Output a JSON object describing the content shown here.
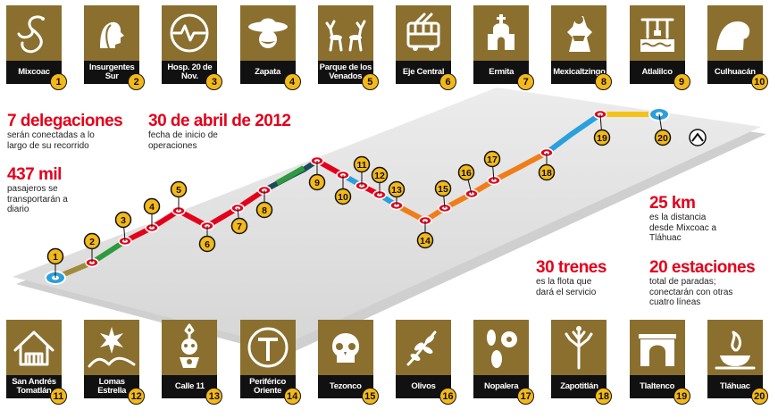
{
  "top_stations": [
    {
      "num": "1",
      "label": "Mixcoac",
      "icon": "serpent-icon"
    },
    {
      "num": "2",
      "label": "Insurgentes Sur",
      "icon": "heads-profile-icon"
    },
    {
      "num": "3",
      "label": "Hosp. 20 de Nov.",
      "icon": "heartbeat-circle-icon"
    },
    {
      "num": "4",
      "label": "Zapata",
      "icon": "sombrero-face-icon"
    },
    {
      "num": "5",
      "label": "Parque de los Venados",
      "icon": "deer-icon"
    },
    {
      "num": "6",
      "label": "Eje Central",
      "icon": "trolleybus-icon"
    },
    {
      "num": "7",
      "label": "Ermita",
      "icon": "chapel-icon"
    },
    {
      "num": "8",
      "label": "Mexicaltzingo",
      "icon": "aztec-figure-icon"
    },
    {
      "num": "9",
      "label": "Atlalilco",
      "icon": "water-well-icon"
    },
    {
      "num": "10",
      "label": "Culhuacán",
      "icon": "curled-hill-icon"
    }
  ],
  "bottom_stations": [
    {
      "num": "11",
      "label": "San Andrés Tomatlán",
      "icon": "house-icon"
    },
    {
      "num": "12",
      "label": "Lomas Estrella",
      "icon": "star-hills-icon"
    },
    {
      "num": "13",
      "label": "Calle 11",
      "icon": "idol-face-icon"
    },
    {
      "num": "14",
      "label": "Periférico Oriente",
      "icon": "road-circle-icon"
    },
    {
      "num": "15",
      "label": "Tezonco",
      "icon": "skull-icon"
    },
    {
      "num": "16",
      "label": "Olivos",
      "icon": "olive-branch-icon"
    },
    {
      "num": "17",
      "label": "Nopalera",
      "icon": "nopal-cactus-icon"
    },
    {
      "num": "18",
      "label": "Zapotitlán",
      "icon": "tree-icon"
    },
    {
      "num": "19",
      "label": "Tlaltenco",
      "icon": "arch-gate-icon"
    },
    {
      "num": "20",
      "label": "Tláhuac",
      "icon": "fire-bowl-icon"
    }
  ],
  "stats": {
    "delegaciones": {
      "big": "7 delegaciones",
      "small": "serán conectadas a lo largo de su recorrido"
    },
    "fecha": {
      "big": "30 de abril de 2012",
      "small": "fecha de inicio de operaciones"
    },
    "pasajeros": {
      "big": "437 mil",
      "small": "pasajeros se transportarán a diario"
    },
    "km": {
      "big": "25 km",
      "small": "es la distancia desde Mixcoac a Tláhuac"
    },
    "trenes": {
      "big": "30 trenes",
      "small": "es la flota que dará el servicio"
    },
    "estaciones": {
      "big": "20 estaciones",
      "small": "total de paradas; conectarán con otras cuatro líneas"
    }
  },
  "route_numbers": [
    "1",
    "2",
    "3",
    "4",
    "5",
    "6",
    "7",
    "8",
    "9",
    "10",
    "11",
    "12",
    "13",
    "14",
    "15",
    "16",
    "17",
    "18",
    "19",
    "20"
  ],
  "colors": {
    "tile": "#8a6f2e",
    "label_bg": "#111111",
    "number_badge": "#f3b81a",
    "stat_red": "#e3001b",
    "line_red": "#e3001b",
    "line_green": "#2e9a3e",
    "line_blue": "#2aa0dc",
    "line_orange": "#f07d18",
    "line_yellow": "#f3c31a",
    "line_olive": "#a08a3c",
    "line_dark": "#1d4a5a"
  }
}
